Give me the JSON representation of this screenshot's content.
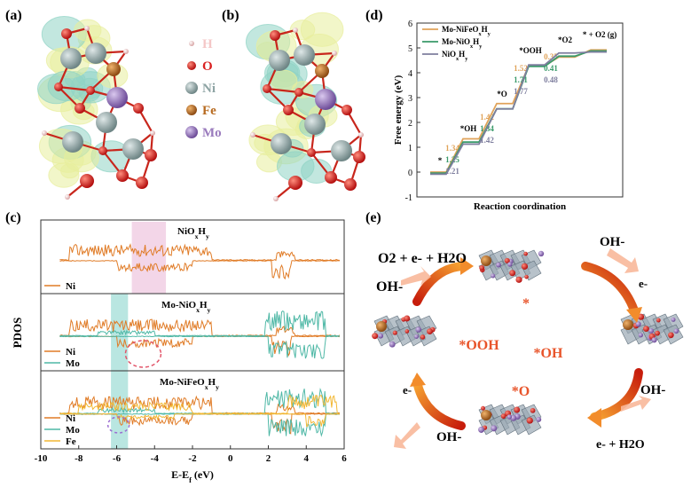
{
  "panels": {
    "a": "(a)",
    "b": "(b)",
    "c": "(c)",
    "d": "(d)",
    "e": "(e)"
  },
  "legend_atoms": [
    {
      "symbol": "H",
      "color": "#f4c7c7"
    },
    {
      "symbol": "O",
      "color": "#d92020"
    },
    {
      "symbol": "Ni",
      "color": "#8ea4a4"
    },
    {
      "symbol": "Fe",
      "color": "#b76a1f"
    },
    {
      "symbol": "Mo",
      "color": "#9a7bbd"
    }
  ],
  "pdos": {
    "ylabel": "PDOS",
    "xlabel": "E-E_f (eV)",
    "xticks": [
      "-10",
      "-8",
      "-6",
      "-4",
      "-2",
      "0",
      "2",
      "4",
      "6"
    ],
    "subplots": [
      {
        "title": "NiO_xH_y",
        "legend": [
          "Ni"
        ],
        "colors": [
          "#e07b26"
        ],
        "highlight": "#e9b5d6"
      },
      {
        "title": "Mo-NiO_xH_y",
        "legend": [
          "Ni",
          "Mo"
        ],
        "colors": [
          "#e07b26",
          "#4fb8a6"
        ],
        "highlight": "#7fd1c9"
      },
      {
        "title": "Mo-NiFeO_xH_y",
        "legend": [
          "Ni",
          "Mo",
          "Fe"
        ],
        "colors": [
          "#e07b26",
          "#4fb8a6",
          "#f2b733"
        ],
        "highlight": null
      }
    ]
  },
  "chart_data": {
    "type": "line",
    "title": "",
    "xlabel": "Reaction coordination",
    "ylabel": "Free energy (eV)",
    "ylim": [
      -1,
      6
    ],
    "yticks": [
      -1,
      0,
      1,
      2,
      3,
      4,
      5,
      6
    ],
    "step_labels": [
      "*",
      "*OH",
      "*O",
      "*OOH",
      "*O2",
      "* + O2 (g)"
    ],
    "series": [
      {
        "name": "Mo-NiFeO_xH_y",
        "color": "#e0a35a",
        "values": [
          0,
          1.34,
          2.76,
          4.28,
          4.63,
          4.92
        ],
        "deltas": [
          "1.34",
          "1.42",
          "1.52",
          "0.35"
        ]
      },
      {
        "name": "Mo-NiO_xH_y",
        "color": "#3a9a6a",
        "values": [
          0,
          1.25,
          2.59,
          4.3,
          4.71,
          4.92
        ],
        "deltas": [
          "1.25",
          "1.34",
          "1.71",
          "0.41"
        ]
      },
      {
        "name": "NiO_xH_y",
        "color": "#7e7e9e",
        "values": [
          0,
          1.21,
          2.63,
          4.4,
          4.88,
          4.92
        ],
        "deltas": [
          "1.21",
          "1.42",
          "1.77",
          "0.48"
        ]
      }
    ],
    "grid": false,
    "legend": "top-left"
  },
  "cycle": {
    "intermediates": [
      "*",
      "*OH",
      "*O",
      "*OOH"
    ],
    "species": {
      "top_left": "O2 + e- + H2O",
      "oh_left": "OH-",
      "oh_top": "OH-",
      "e_top": "e-",
      "oh_right": "OH-",
      "e_bottom": "e- + H2O",
      "e_left": "e-",
      "oh_bottom": "OH-"
    }
  }
}
